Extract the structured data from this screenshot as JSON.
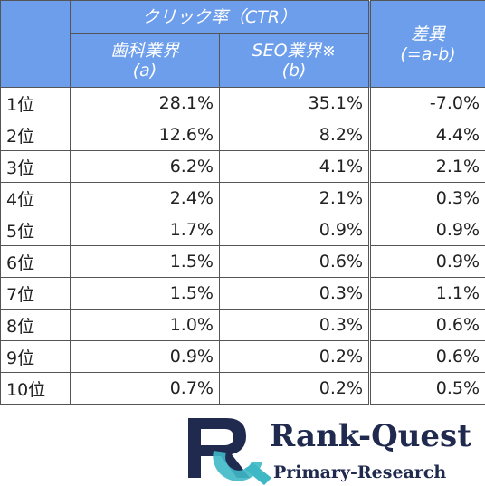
{
  "table": {
    "group_header": "クリック率（CTR）",
    "columns": [
      {
        "title": "歯科業界",
        "sub": "(a)"
      },
      {
        "title": "SEO業界※",
        "sub": "(b)"
      },
      {
        "title": "差異",
        "sub": "(=a-b)"
      }
    ],
    "rows": [
      [
        "1位",
        "28.1%",
        "35.1%",
        "-7.0%"
      ],
      [
        "2位",
        "12.6%",
        "8.2%",
        "4.4%"
      ],
      [
        "3位",
        "6.2%",
        "4.1%",
        "2.1%"
      ],
      [
        "4位",
        "2.4%",
        "2.1%",
        "0.3%"
      ],
      [
        "5位",
        "1.7%",
        "0.9%",
        "0.9%"
      ],
      [
        "6位",
        "1.5%",
        "0.6%",
        "0.9%"
      ],
      [
        "7位",
        "1.5%",
        "0.3%",
        "1.1%"
      ],
      [
        "8位",
        "1.0%",
        "0.3%",
        "0.6%"
      ],
      [
        "9位",
        "0.9%",
        "0.2%",
        "0.6%"
      ],
      [
        "10位",
        "0.7%",
        "0.2%",
        "0.5%"
      ]
    ]
  },
  "logo": {
    "name": "Rank-Quest",
    "tagline": "Primary-Research"
  }
}
